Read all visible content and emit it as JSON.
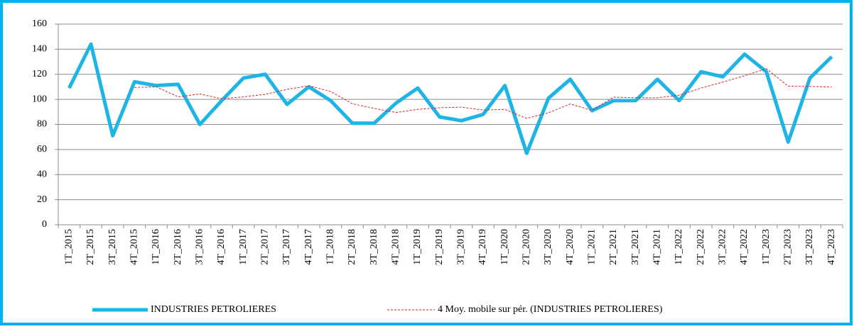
{
  "chart_data": {
    "type": "line",
    "categories": [
      "1T_2015",
      "2T_2015",
      "3T_2015",
      "4T_2015",
      "1T_2016",
      "2T_2016",
      "3T_2016",
      "4T_2016",
      "1T_2017",
      "2T_2017",
      "3T_2017",
      "4T_2017",
      "1T_2018",
      "2T_2018",
      "3T_2018",
      "4T_2018",
      "1T_2019",
      "2T_2019",
      "3T_2019",
      "4T_2019",
      "1T_2020",
      "2T_2020",
      "3T_2020",
      "4T_2020",
      "1T_2021",
      "2T_2021",
      "3T_2021",
      "4T_2021",
      "1T_2022",
      "2T_2022",
      "3T_2022",
      "4T_2022",
      "1T_2023",
      "2T_2023",
      "3T_2023",
      "4T_2023"
    ],
    "series": [
      {
        "name": "INDUSTRIES PETROLIERES",
        "color": "#1fb4e6",
        "style": "solid",
        "values": [
          109,
          144,
          71,
          114,
          111,
          112,
          80,
          99,
          117,
          120,
          96,
          110,
          99,
          81,
          81,
          97,
          109,
          86,
          83,
          88,
          111,
          57,
          101,
          116,
          91,
          99,
          99,
          116,
          99,
          122,
          118,
          136,
          122,
          66,
          117,
          134
        ]
      },
      {
        "name": "4 Moy. mobile sur pér. (INDUSTRIES PETROLIERES)",
        "color": "#e02020",
        "style": "dashed",
        "values": [
          null,
          null,
          null,
          109.5,
          110,
          102,
          104.3,
          100.5,
          102,
          104,
          108,
          110.8,
          106.3,
          96.5,
          92.8,
          89.5,
          92,
          93.3,
          93.8,
          91.5,
          92,
          84.8,
          89.3,
          96.3,
          91.3,
          101.8,
          101.3,
          101.3,
          103.3,
          109,
          113.8,
          118.8,
          124.5,
          110.5,
          110.3,
          109.8
        ]
      }
    ],
    "ylim": [
      0,
      160
    ],
    "yticks": [
      0,
      20,
      40,
      60,
      80,
      100,
      120,
      140,
      160
    ],
    "grid": true,
    "legend": "bottom"
  }
}
